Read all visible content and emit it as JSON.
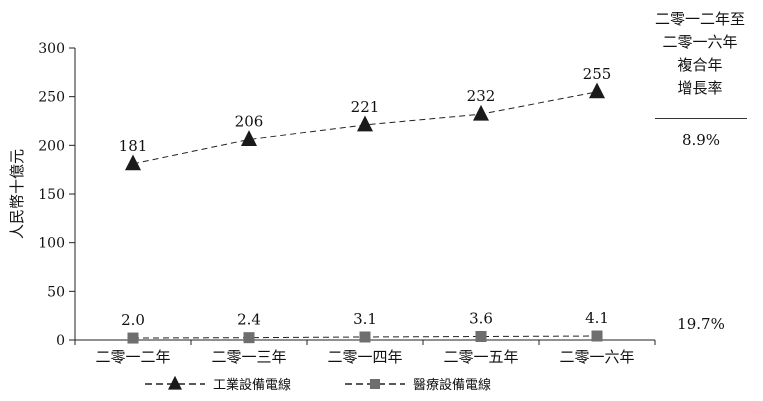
{
  "chart_data": {
    "type": "line",
    "title": "",
    "xlabel": "",
    "ylabel": "人民幣十億元",
    "ylim": [
      0,
      300
    ],
    "yticks": [
      0,
      50,
      100,
      150,
      200,
      250,
      300
    ],
    "categories": [
      "二零一二年",
      "二零一三年",
      "二零一四年",
      "二零一五年",
      "二零一六年"
    ],
    "series": [
      {
        "name": "工業設備電線",
        "values": [
          181,
          206,
          221,
          232,
          255
        ],
        "value_labels": [
          "181",
          "206",
          "221",
          "232",
          "255"
        ],
        "marker": "triangle",
        "line_style": "dashed",
        "color": "#1a1a1a"
      },
      {
        "name": "醫療設備電線",
        "values": [
          2.0,
          2.4,
          3.1,
          3.6,
          4.1
        ],
        "value_labels": [
          "2.0",
          "2.4",
          "3.1",
          "3.6",
          "4.1"
        ],
        "marker": "square",
        "line_style": "dashed",
        "color": "#6e6e6e"
      }
    ],
    "grid": false,
    "legend_position": "bottom",
    "cagr": {
      "header": [
        "二零一二年至",
        "二零一六年",
        "複合年",
        "增長率"
      ],
      "industrial": "8.9%",
      "medical": "19.7%"
    }
  }
}
